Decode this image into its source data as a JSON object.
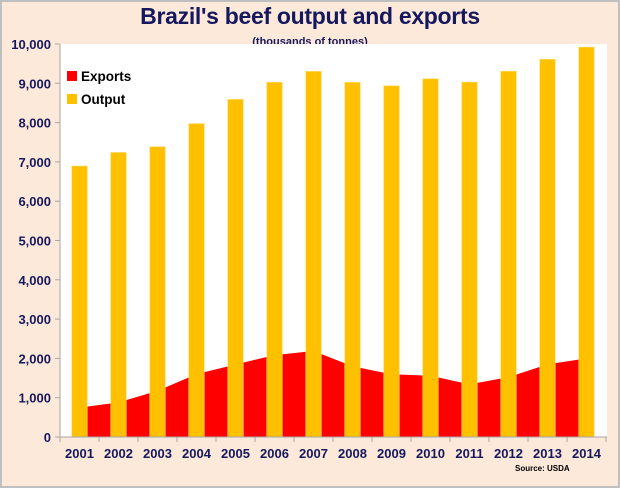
{
  "chart_data": {
    "type": "bar",
    "title": "Brazil's beef output and exports",
    "subtitle": "(thousands of tonnes)",
    "xlabel": "",
    "ylabel": "",
    "ylim": [
      0,
      10000
    ],
    "y_ticks": [
      "0",
      "1,000",
      "2,000",
      "3,000",
      "4,000",
      "5,000",
      "6,000",
      "7,000",
      "8,000",
      "9,000",
      "10,000"
    ],
    "y_tick_values": [
      0,
      1000,
      2000,
      3000,
      4000,
      5000,
      6000,
      7000,
      8000,
      9000,
      10000
    ],
    "categories": [
      "2001",
      "2002",
      "2003",
      "2004",
      "2005",
      "2006",
      "2007",
      "2008",
      "2009",
      "2010",
      "2011",
      "2012",
      "2013",
      "2014"
    ],
    "grid": false,
    "legend_position": "top-left",
    "series": [
      {
        "name": "Exports",
        "type": "area",
        "color": "#FF0000",
        "values": [
          748,
          881,
          1175,
          1600,
          1845,
          2084,
          2189,
          1801,
          1596,
          1558,
          1340,
          1524,
          1849,
          2000
        ]
      },
      {
        "name": "Output",
        "type": "bar",
        "color": "#FFC000",
        "values": [
          6895,
          7240,
          7385,
          7975,
          8590,
          9025,
          9303,
          9024,
          8935,
          9115,
          9030,
          9307,
          9610,
          9920
        ]
      }
    ],
    "annotations": [
      "Source: USDA"
    ]
  }
}
